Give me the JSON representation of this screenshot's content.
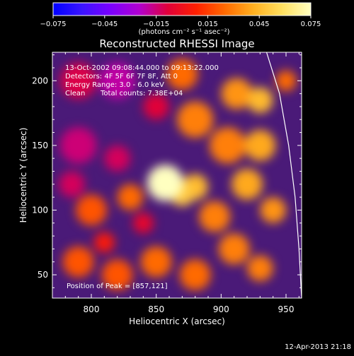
{
  "chart_data": {
    "type": "heatmap",
    "title": "Reconstructed RHESSI Image",
    "xlabel": "Heliocentric X (arcsec)",
    "ylabel": "Heliocentric Y (arcsec)",
    "xlim": [
      770,
      962
    ],
    "ylim": [
      32,
      222
    ],
    "x_ticks": [
      800,
      850,
      900,
      950
    ],
    "y_ticks": [
      50,
      100,
      150,
      200
    ],
    "colorbar": {
      "range": [
        -0.075,
        0.075
      ],
      "ticks": [
        "−0.075",
        "−0.045",
        "−0.015",
        "0.015",
        "0.045",
        "0.075"
      ],
      "unit_label": "(photons cm⁻² s⁻¹ asec⁻²)",
      "colors": [
        "#0000ff",
        "#3a14ff",
        "#7a00ff",
        "#b000d0",
        "#e0003a",
        "#ff2000",
        "#ff6a00",
        "#ffb020",
        "#ffe060",
        "#ffffc0"
      ]
    },
    "annotations": {
      "time_range": "13-Oct-2002 09:08:44.000 to 09:13:22.000",
      "detectors": "Detectors: 4F 5F 6F 7F 8F, Att 0",
      "energy_range": "Energy Range: 3.0 - 6.0 keV",
      "clean_label": "Clean",
      "total_counts": "Total counts: 7.38E+04",
      "peak": "Position of Peak = [857,121]"
    },
    "peak_position": [
      857,
      121
    ],
    "limb_curve": [
      [
        935,
        222
      ],
      [
        945,
        190
      ],
      [
        952,
        150
      ],
      [
        957,
        110
      ],
      [
        960,
        70
      ],
      [
        962,
        32
      ]
    ],
    "blobs": [
      {
        "x": 857,
        "y": 121,
        "v": 0.08,
        "r": 14
      },
      {
        "x": 870,
        "y": 113,
        "v": 0.05,
        "r": 10
      },
      {
        "x": 880,
        "y": 118,
        "v": 0.045,
        "r": 10
      },
      {
        "x": 930,
        "y": 185,
        "v": 0.045,
        "r": 10
      },
      {
        "x": 912,
        "y": 190,
        "v": 0.035,
        "r": 12
      },
      {
        "x": 930,
        "y": 150,
        "v": 0.04,
        "r": 12
      },
      {
        "x": 920,
        "y": 120,
        "v": 0.04,
        "r": 12
      },
      {
        "x": 940,
        "y": 100,
        "v": 0.035,
        "r": 10
      },
      {
        "x": 905,
        "y": 150,
        "v": 0.03,
        "r": 14
      },
      {
        "x": 895,
        "y": 95,
        "v": 0.03,
        "r": 12
      },
      {
        "x": 910,
        "y": 70,
        "v": 0.03,
        "r": 12
      },
      {
        "x": 930,
        "y": 55,
        "v": 0.03,
        "r": 10
      },
      {
        "x": 880,
        "y": 50,
        "v": 0.025,
        "r": 12
      },
      {
        "x": 850,
        "y": 60,
        "v": 0.025,
        "r": 12
      },
      {
        "x": 820,
        "y": 50,
        "v": 0.02,
        "r": 12
      },
      {
        "x": 790,
        "y": 60,
        "v": 0.02,
        "r": 12
      },
      {
        "x": 800,
        "y": 100,
        "v": 0.02,
        "r": 12
      },
      {
        "x": 830,
        "y": 110,
        "v": 0.025,
        "r": 10
      },
      {
        "x": 880,
        "y": 170,
        "v": 0.03,
        "r": 14
      },
      {
        "x": 870,
        "y": 205,
        "v": 0.025,
        "r": 12
      },
      {
        "x": 950,
        "y": 200,
        "v": 0.025,
        "r": 8
      },
      {
        "x": 820,
        "y": 200,
        "v": -0.02,
        "r": 14
      },
      {
        "x": 790,
        "y": 150,
        "v": -0.015,
        "r": 14
      },
      {
        "x": 820,
        "y": 140,
        "v": -0.012,
        "r": 10
      },
      {
        "x": 790,
        "y": 200,
        "v": -0.01,
        "r": 14
      },
      {
        "x": 850,
        "y": 180,
        "v": -0.008,
        "r": 10
      },
      {
        "x": 785,
        "y": 120,
        "v": -0.012,
        "r": 10
      },
      {
        "x": 840,
        "y": 90,
        "v": -0.005,
        "r": 8
      },
      {
        "x": 810,
        "y": 75,
        "v": 0.005,
        "r": 8
      }
    ]
  },
  "footer": {
    "date": "12-Apr-2013 21:18"
  }
}
